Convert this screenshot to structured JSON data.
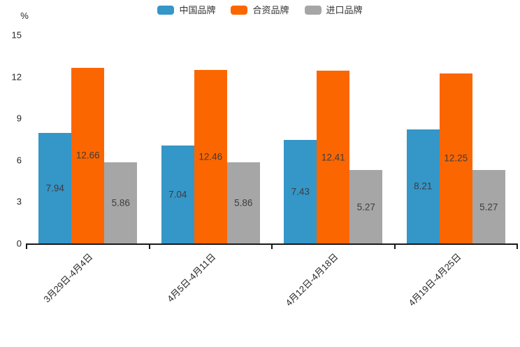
{
  "chart_data": {
    "type": "bar",
    "title": "",
    "ylabel": "%",
    "xlabel": "",
    "ylim": [
      0,
      15
    ],
    "yticks": [
      0,
      3,
      6,
      9,
      12,
      15
    ],
    "grid": false,
    "legend_position": "top-center",
    "value_labels": "inside-center",
    "categories": [
      "3月29日-4月4日",
      "4月5日-4月11日",
      "4月12日-4月18日",
      "4月19日-4月25日"
    ],
    "series": [
      {
        "name": "中国品牌",
        "color": "#3596c8",
        "values": [
          7.94,
          7.04,
          7.43,
          8.21
        ]
      },
      {
        "name": "合资品牌",
        "color": "#fc6600",
        "values": [
          12.66,
          12.46,
          12.41,
          12.25
        ]
      },
      {
        "name": "进口品牌",
        "color": "#a6a6a6",
        "values": [
          5.86,
          5.86,
          5.27,
          5.27
        ]
      }
    ]
  },
  "colors": {
    "axis_line": "#1a1a1a",
    "tick_text": "#262626",
    "bar_value_text": "#3d3d3d",
    "legend_text": "#333333",
    "background": "#ffffff"
  }
}
